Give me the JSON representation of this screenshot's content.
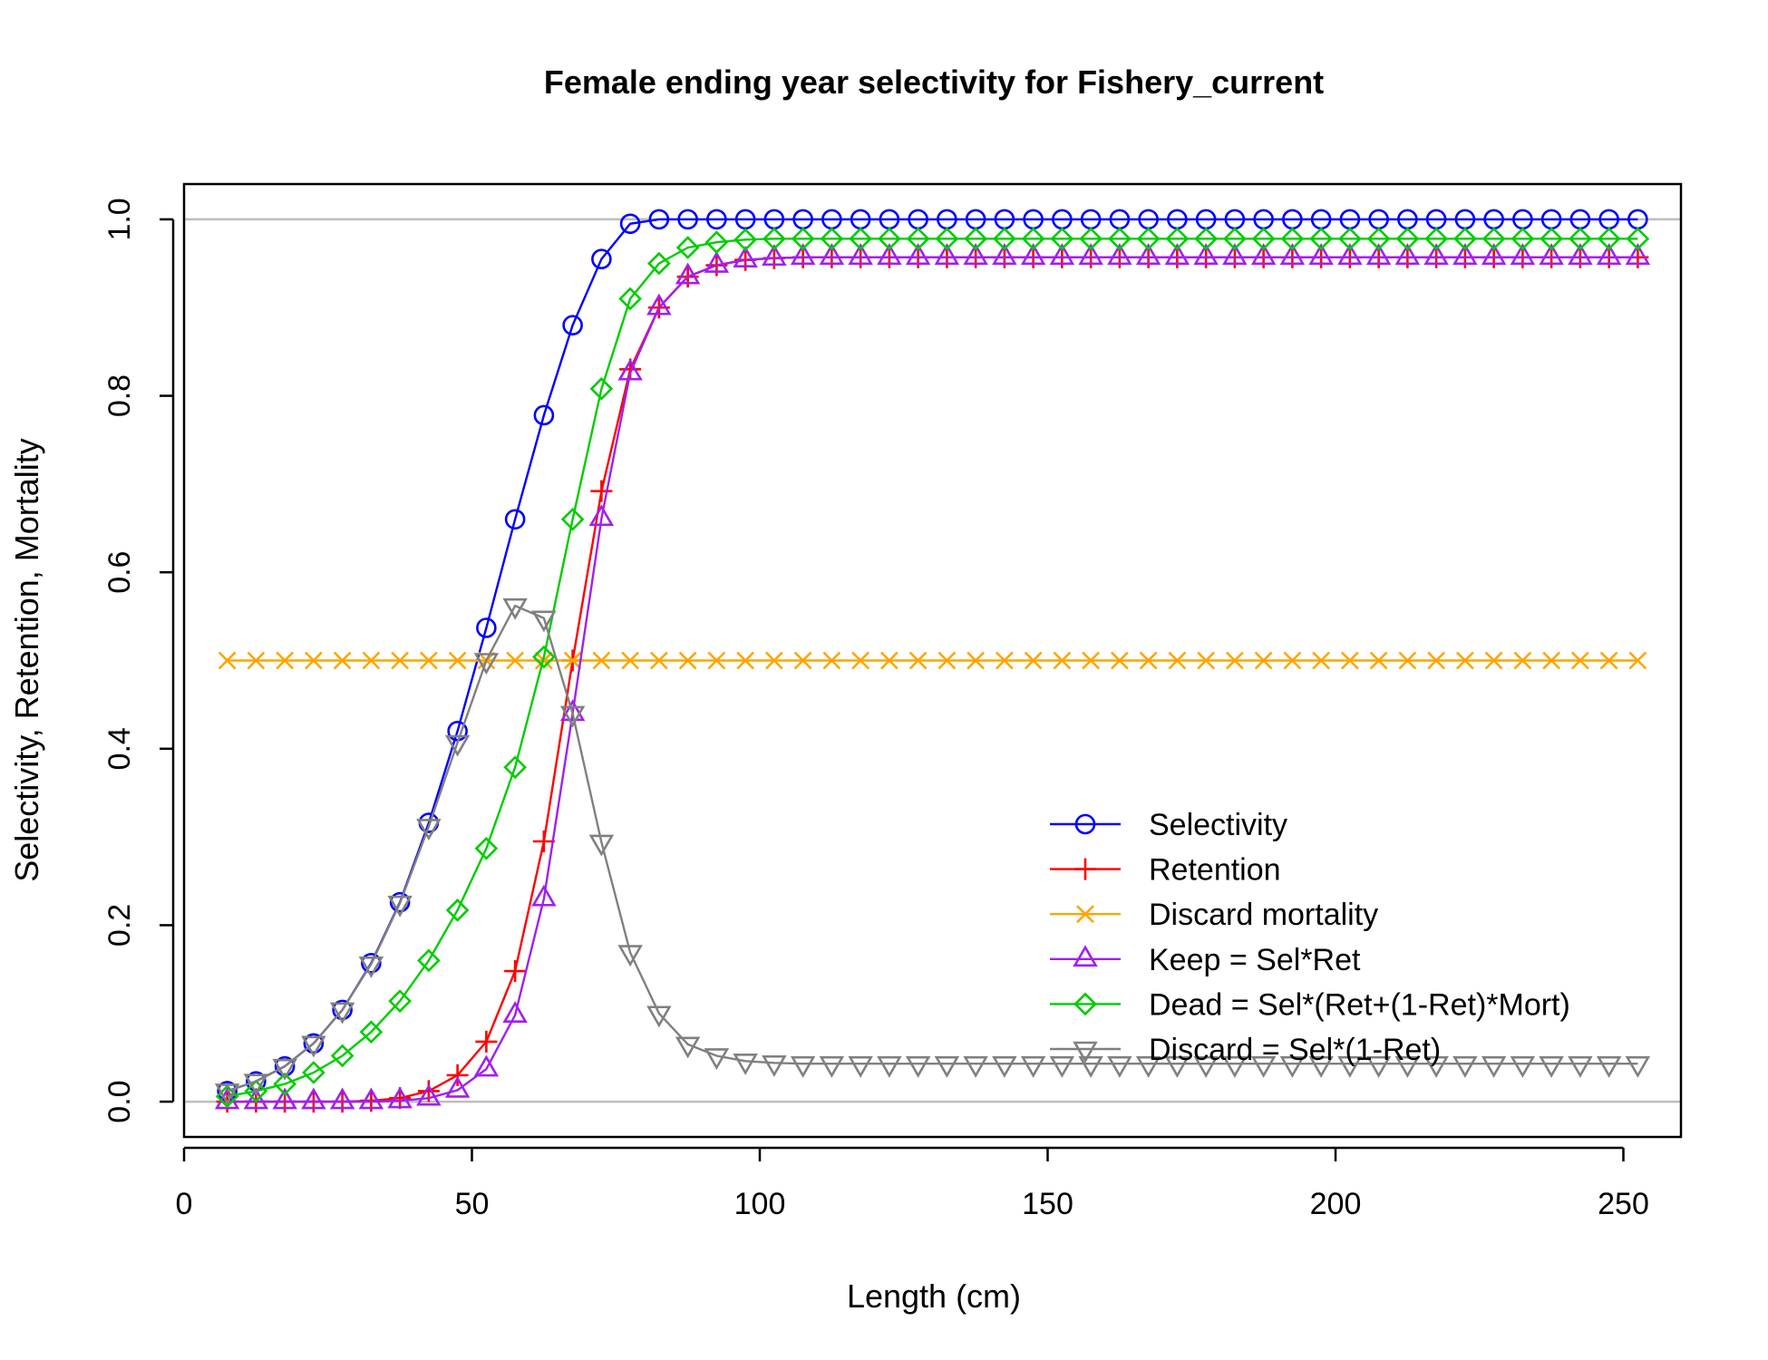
{
  "chart_data": {
    "type": "line",
    "title": "Female ending year selectivity for Fishery_current",
    "xlabel": "Length (cm)",
    "ylabel": "Selectivity, Retention, Mortality",
    "xlim": [
      0,
      260
    ],
    "ylim": [
      -0.04,
      1.04
    ],
    "xticks": [
      0,
      50,
      100,
      150,
      200,
      250
    ],
    "xtick_labels": [
      "0",
      "50",
      "100",
      "150",
      "200",
      "250"
    ],
    "yticks": [
      0,
      0.2,
      0.4,
      0.6,
      0.8,
      1
    ],
    "ytick_labels": [
      "0.0",
      "0.2",
      "0.4",
      "0.6",
      "0.8",
      "1.0"
    ],
    "reference_lines": [
      0,
      1
    ],
    "legend_position": "bottom-right",
    "x": [
      7.5,
      12.5,
      17.5,
      22.5,
      27.5,
      32.5,
      37.5,
      42.5,
      47.5,
      52.5,
      57.5,
      62.5,
      67.5,
      72.5,
      77.5,
      82.5,
      87.5,
      92.5,
      97.5,
      102.5,
      107.5,
      112.5,
      117.5,
      122.5,
      127.5,
      132.5,
      137.5,
      142.5,
      147.5,
      152.5,
      157.5,
      162.5,
      167.5,
      172.5,
      177.5,
      182.5,
      187.5,
      192.5,
      197.5,
      202.5,
      207.5,
      212.5,
      217.5,
      222.5,
      227.5,
      232.5,
      237.5,
      242.5,
      247.5,
      252.5
    ],
    "series": [
      {
        "name": "Selectivity",
        "color": "#0000FF",
        "marker": "circle",
        "values": [
          0.012,
          0.023,
          0.04,
          0.066,
          0.104,
          0.157,
          0.226,
          0.316,
          0.42,
          0.537,
          0.66,
          0.778,
          0.88,
          0.955,
          0.995,
          1,
          1,
          1,
          1,
          1,
          1,
          1,
          1,
          1,
          1,
          1,
          1,
          1,
          1,
          1,
          1,
          1,
          1,
          1,
          1,
          1,
          1,
          1,
          1,
          1,
          1,
          1,
          1,
          1,
          1,
          1,
          1,
          1,
          1,
          1
        ]
      },
      {
        "name": "Retention",
        "color": "#FF0000",
        "marker": "plus",
        "values": [
          0,
          0,
          0,
          0,
          0,
          0.001,
          0.004,
          0.012,
          0.03,
          0.068,
          0.148,
          0.295,
          0.5,
          0.692,
          0.83,
          0.9,
          0.935,
          0.948,
          0.954,
          0.956,
          0.957,
          0.957,
          0.957,
          0.957,
          0.957,
          0.957,
          0.957,
          0.957,
          0.957,
          0.957,
          0.957,
          0.957,
          0.957,
          0.957,
          0.957,
          0.957,
          0.957,
          0.957,
          0.957,
          0.957,
          0.957,
          0.957,
          0.957,
          0.957,
          0.957,
          0.957,
          0.957,
          0.957,
          0.957,
          0.957
        ]
      },
      {
        "name": "Discard mortality",
        "color": "#FFA500",
        "marker": "x",
        "values": [
          0.5,
          0.5,
          0.5,
          0.5,
          0.5,
          0.5,
          0.5,
          0.5,
          0.5,
          0.5,
          0.5,
          0.5,
          0.5,
          0.5,
          0.5,
          0.5,
          0.5,
          0.5,
          0.5,
          0.5,
          0.5,
          0.5,
          0.5,
          0.5,
          0.5,
          0.5,
          0.5,
          0.5,
          0.5,
          0.5,
          0.5,
          0.5,
          0.5,
          0.5,
          0.5,
          0.5,
          0.5,
          0.5,
          0.5,
          0.5,
          0.5,
          0.5,
          0.5,
          0.5,
          0.5,
          0.5,
          0.5,
          0.5,
          0.5,
          0.5
        ]
      },
      {
        "name": "Keep = Sel*Ret",
        "color": "#A020F0",
        "marker": "triangle-up",
        "values": [
          0,
          0,
          0,
          0,
          0,
          0,
          0.001,
          0.004,
          0.013,
          0.037,
          0.098,
          0.23,
          0.44,
          0.661,
          0.826,
          0.9,
          0.935,
          0.948,
          0.954,
          0.956,
          0.957,
          0.957,
          0.957,
          0.957,
          0.957,
          0.957,
          0.957,
          0.957,
          0.957,
          0.957,
          0.957,
          0.957,
          0.957,
          0.957,
          0.957,
          0.957,
          0.957,
          0.957,
          0.957,
          0.957,
          0.957,
          0.957,
          0.957,
          0.957,
          0.957,
          0.957,
          0.957,
          0.957,
          0.957,
          0.957
        ]
      },
      {
        "name": "Dead = Sel*(Ret+(1-Ret)*Mort)",
        "color": "#00CD00",
        "marker": "diamond",
        "values": [
          0.006,
          0.012,
          0.02,
          0.033,
          0.052,
          0.079,
          0.114,
          0.16,
          0.217,
          0.287,
          0.379,
          0.504,
          0.66,
          0.808,
          0.91,
          0.95,
          0.968,
          0.974,
          0.977,
          0.978,
          0.978,
          0.978,
          0.978,
          0.978,
          0.978,
          0.978,
          0.978,
          0.978,
          0.978,
          0.978,
          0.978,
          0.978,
          0.978,
          0.978,
          0.978,
          0.978,
          0.978,
          0.978,
          0.978,
          0.978,
          0.978,
          0.978,
          0.978,
          0.978,
          0.978,
          0.978,
          0.978,
          0.978,
          0.978,
          0.978
        ]
      },
      {
        "name": "Discard = Sel*(1-Ret)",
        "color": "#808080",
        "marker": "triangle-down",
        "values": [
          0.012,
          0.023,
          0.04,
          0.066,
          0.104,
          0.156,
          0.225,
          0.312,
          0.407,
          0.5,
          0.562,
          0.548,
          0.44,
          0.294,
          0.169,
          0.1,
          0.065,
          0.052,
          0.046,
          0.044,
          0.043,
          0.043,
          0.043,
          0.043,
          0.043,
          0.043,
          0.043,
          0.043,
          0.043,
          0.043,
          0.043,
          0.043,
          0.043,
          0.043,
          0.043,
          0.043,
          0.043,
          0.043,
          0.043,
          0.043,
          0.043,
          0.043,
          0.043,
          0.043,
          0.043,
          0.043,
          0.043,
          0.043,
          0.043,
          0.043
        ]
      }
    ]
  }
}
